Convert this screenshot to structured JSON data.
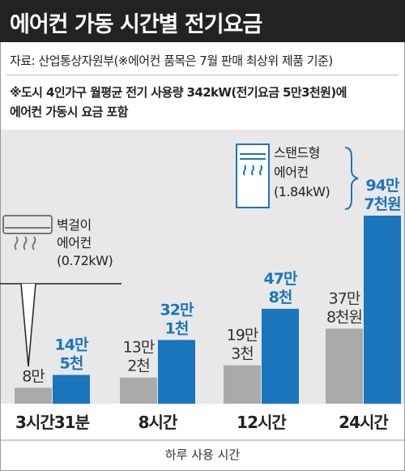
{
  "title": "에어컨 가동 시간별 전기요금",
  "source": "자료: 산업통상자원부(※에어컨 품목은 7월 판매 최상위 제품 기준)",
  "note_lines": [
    "※도시 4인가구 월평균 전기 사용량 342kW(전기요금 5만3천원)에",
    "에어컨 가동시 요금 포함"
  ],
  "colors": {
    "wall_ac": "#aaaaaa",
    "stand_ac": "#1b75bc",
    "title_bg": "#222222",
    "band_bg": "#e8e8e8"
  },
  "annotations": {
    "wall": {
      "lines": [
        "벽걸이",
        "에어컨",
        "(0.72kW)"
      ],
      "icon": "wall-air-conditioner-icon"
    },
    "stand": {
      "lines": [
        "스탠드형",
        "에어컨",
        "(1.84kW)"
      ],
      "icon": "stand-air-conditioner-icon"
    }
  },
  "chart_data": {
    "type": "bar",
    "categories": [
      "3시간31분",
      "8시간",
      "12시간",
      "24시간"
    ],
    "x_title": "하루 사용 시간",
    "unit": "원",
    "series": [
      {
        "values": [
          80000,
          132000,
          193000,
          378000
        ],
        "labels": [
          [
            "8만"
          ],
          [
            "13만",
            "2천"
          ],
          [
            "19만",
            "3천"
          ],
          [
            "37만",
            "8천원"
          ]
        ]
      },
      {
        "values": [
          145000,
          321000,
          478000,
          947000
        ],
        "labels": [
          [
            "14만",
            "5천"
          ],
          [
            "32만",
            "1천"
          ],
          [
            "47만",
            "8천"
          ],
          [
            "94만",
            "7천원"
          ]
        ]
      }
    ],
    "grid": false
  }
}
